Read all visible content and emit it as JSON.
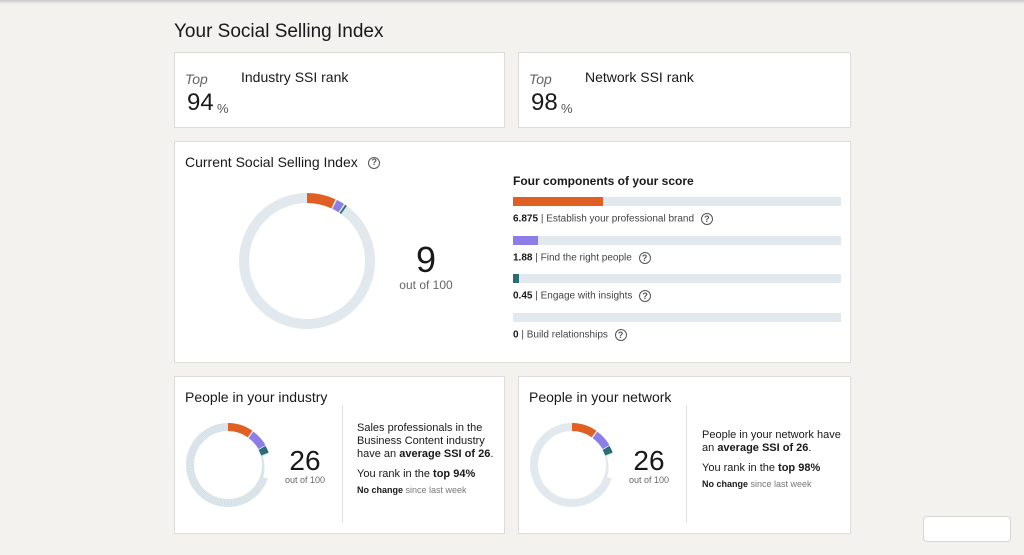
{
  "page": {
    "title": "Your Social Selling Index"
  },
  "industry_rank": {
    "top_word": "Top",
    "title": "Industry SSI rank",
    "value": "94",
    "unit": "%"
  },
  "network_rank": {
    "top_word": "Top",
    "title": "Network SSI rank",
    "value": "98",
    "unit": "%"
  },
  "current_ssi": {
    "title": "Current Social Selling Index",
    "score": "9",
    "out_of": "out of 100",
    "components_heading": "Four components of your score",
    "components": [
      {
        "value": "6.875",
        "label": "| Establish your professional brand",
        "fraction": 0.275,
        "color": "#e06023"
      },
      {
        "value": "1.88",
        "label": "| Find the right people",
        "fraction": 0.075,
        "color": "#8c7ee6"
      },
      {
        "value": "0.45",
        "label": "| Engage with insights",
        "fraction": 0.018,
        "color": "#2b6d77"
      },
      {
        "value": "0",
        "label": "| Build relationships",
        "fraction": 0.0,
        "color": "#c9d9e0"
      }
    ]
  },
  "industry_people": {
    "title": "People in your industry",
    "score": "26",
    "out_of": "out of 100",
    "desc_line1": "Sales professionals in the",
    "desc_line2": "Business Content industry",
    "desc_line3_prefix": "have an",
    "desc_line3_bold": "average SSI of 26",
    "desc_line3_suffix": ".",
    "rank_prefix": "You rank in the",
    "rank_bold": "top 94%",
    "change_bold": "No change",
    "change_suffix": "since last week"
  },
  "network_people": {
    "title": "People in your network",
    "score": "26",
    "out_of": "out of 100",
    "desc_line1": "People in your network have",
    "desc_line2_prefix": "an",
    "desc_line2_bold": "average SSI of 26",
    "desc_line2_suffix": ".",
    "rank_prefix": "You rank in the",
    "rank_bold": "top 98%",
    "change_bold": "No change",
    "change_suffix": "since last week"
  },
  "colors": {
    "brand": "#e06023",
    "find": "#8c7ee6",
    "engage": "#2b6d77",
    "track": "#e1e9ee"
  }
}
